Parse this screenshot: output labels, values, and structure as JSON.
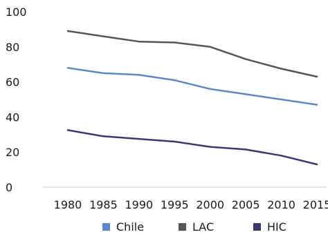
{
  "chart_data": {
    "type": "line",
    "title": "",
    "xlabel": "",
    "ylabel": "",
    "x": [
      "1980",
      "1985",
      "1990",
      "1995",
      "2000",
      "2005",
      "2010",
      "2015"
    ],
    "ylim": [
      0,
      100
    ],
    "yticks": [
      "0",
      "20",
      "40",
      "60",
      "80",
      "100"
    ],
    "grid": false,
    "legend_position": "bottom",
    "series": [
      {
        "name": "Chile",
        "color": "#5b87c8",
        "values": [
          68,
          65,
          64,
          61,
          56,
          53,
          50,
          47
        ]
      },
      {
        "name": "LAC",
        "color": "#555555",
        "values": [
          89,
          86,
          83,
          82.5,
          80,
          73,
          67.5,
          63
        ]
      },
      {
        "name": "HIC",
        "color": "#3a3873",
        "values": [
          32.5,
          29,
          27.5,
          26,
          23,
          21.5,
          18,
          13
        ]
      }
    ]
  }
}
